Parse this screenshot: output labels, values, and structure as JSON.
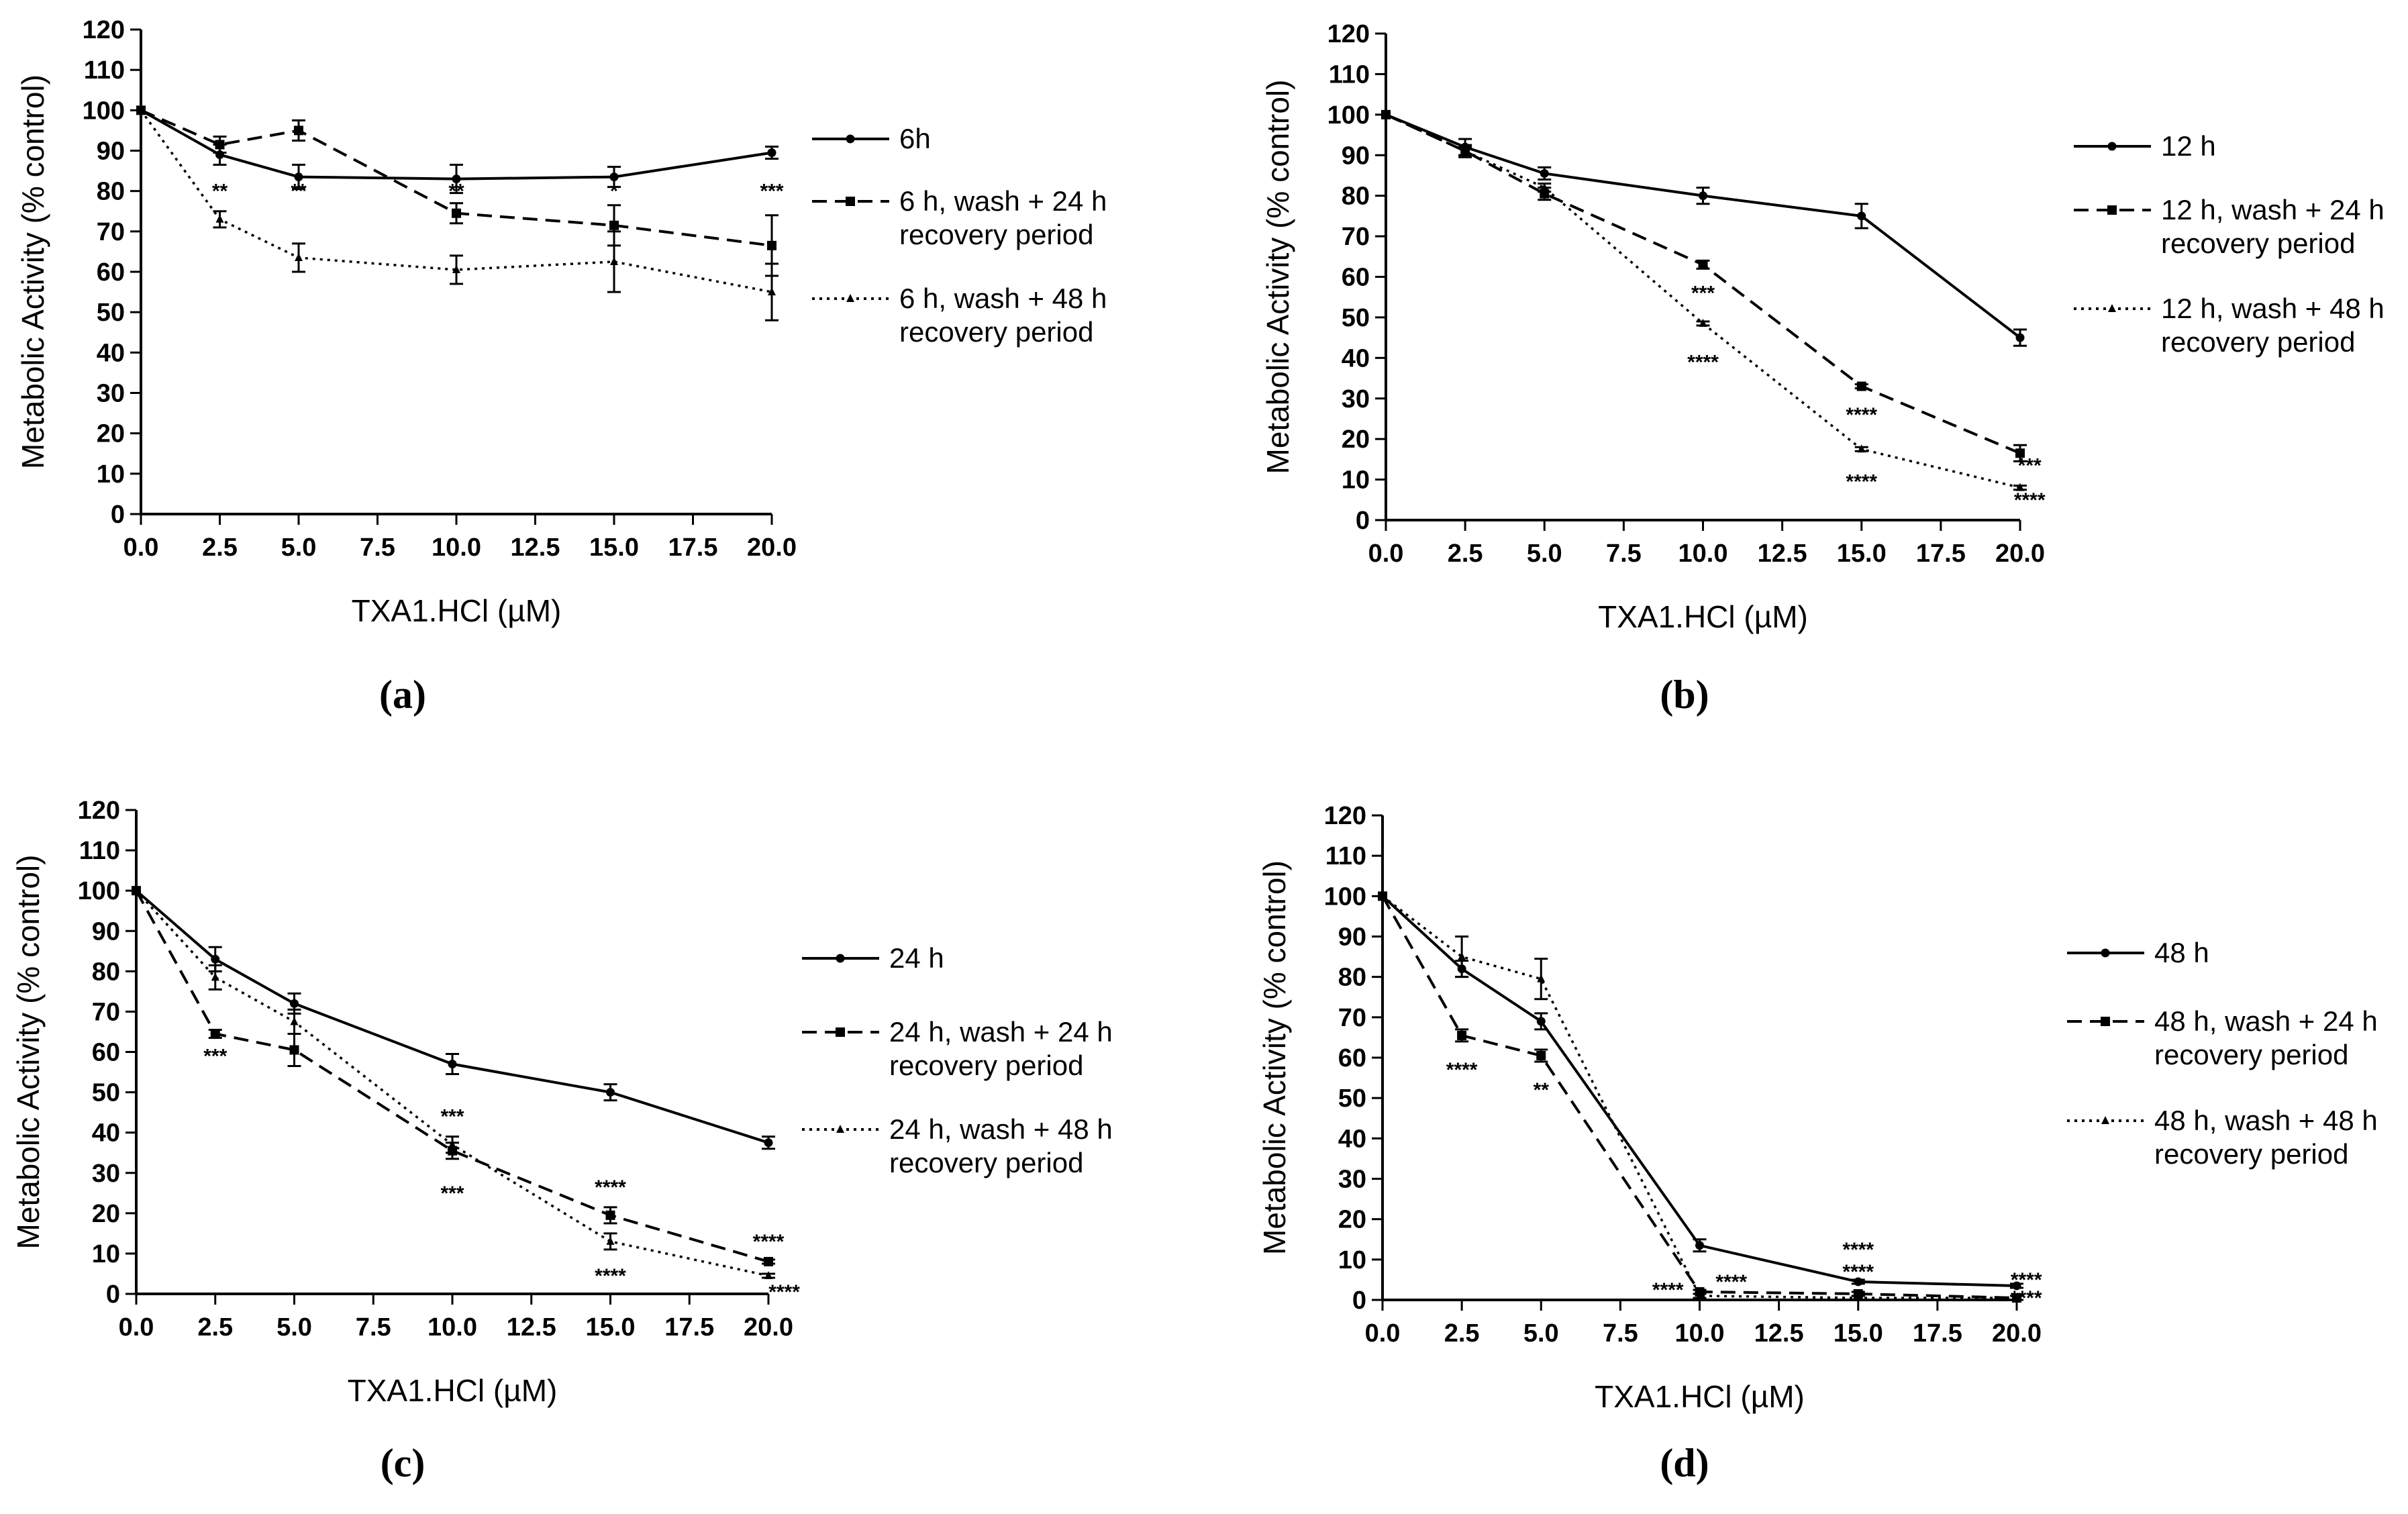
{
  "chart_data": [
    {
      "type": "line",
      "panel_label": "(a)",
      "xlabel": "TXA1.HCl (µM)",
      "ylabel": "Metabolic Activity (% control)",
      "xlim": [
        0,
        20
      ],
      "ylim": [
        0,
        120
      ],
      "x_ticks": [
        "0.0",
        "2.5",
        "5.0",
        "7.5",
        "10.0",
        "12.5",
        "15.0",
        "17.5",
        "20.0"
      ],
      "y_ticks": [
        "0",
        "10",
        "20",
        "30",
        "40",
        "50",
        "60",
        "70",
        "80",
        "90",
        "100",
        "110",
        "120"
      ],
      "legend_position": "right",
      "x": [
        0,
        2.5,
        5,
        10,
        15,
        20
      ],
      "series": [
        {
          "name": "6h",
          "legend_lines": [
            "6h"
          ],
          "style": "solid",
          "marker": "circle",
          "values": [
            100,
            89,
            83.5,
            83,
            83.5,
            89.5
          ],
          "errors": [
            0,
            2.5,
            3,
            3.5,
            2.5,
            1.5
          ]
        },
        {
          "name": "6 h, wash + 24 h recovery period",
          "legend_lines": [
            "6 h, wash + 24 h",
            "recovery period"
          ],
          "style": "dashed",
          "marker": "square",
          "values": [
            100,
            91.5,
            95,
            74.5,
            71.5,
            66.5
          ],
          "errors": [
            0,
            2,
            2.5,
            2.5,
            5,
            7.5
          ]
        },
        {
          "name": "6 h, wash + 48 h recovery period",
          "legend_lines": [
            "6 h, wash + 48 h",
            "recovery period"
          ],
          "style": "dotted",
          "marker": "triangle",
          "values": [
            100,
            73,
            63.5,
            60.5,
            62.5,
            55
          ],
          "errors": [
            0,
            2,
            3.5,
            3.5,
            7.5,
            7
          ]
        }
      ],
      "annotations": [
        {
          "text": "**",
          "x": 2.5,
          "y": 80,
          "dy": 0
        },
        {
          "text": "**",
          "x": 5,
          "y": 80,
          "dy": 0
        },
        {
          "text": "**",
          "x": 10,
          "y": 80,
          "dy": 0
        },
        {
          "text": "*",
          "x": 15,
          "y": 80,
          "dy": 0
        },
        {
          "text": "***",
          "x": 20,
          "y": 80,
          "dy": 0
        }
      ]
    },
    {
      "type": "line",
      "panel_label": "(b)",
      "xlabel": "TXA1.HCl (µM)",
      "ylabel": "Metabolic Activity (% control)",
      "xlim": [
        0,
        20
      ],
      "ylim": [
        0,
        120
      ],
      "x_ticks": [
        "0.0",
        "2.5",
        "5.0",
        "7.5",
        "10.0",
        "12.5",
        "15.0",
        "17.5",
        "20.0"
      ],
      "y_ticks": [
        "0",
        "10",
        "20",
        "30",
        "40",
        "50",
        "60",
        "70",
        "80",
        "90",
        "100",
        "110",
        "120"
      ],
      "legend_position": "right",
      "x": [
        0,
        2.5,
        5,
        10,
        15,
        20
      ],
      "series": [
        {
          "name": "12 h",
          "legend_lines": [
            "12 h"
          ],
          "style": "solid",
          "marker": "circle",
          "values": [
            100,
            92,
            85.5,
            80,
            75,
            45
          ],
          "errors": [
            0,
            2,
            1.5,
            2,
            3,
            2
          ]
        },
        {
          "name": "12 h, wash + 24 h recovery period",
          "legend_lines": [
            "12 h, wash + 24 h",
            "recovery period"
          ],
          "style": "dashed",
          "marker": "square",
          "values": [
            100,
            91,
            80.5,
            63,
            33,
            16.5
          ],
          "errors": [
            0,
            1.5,
            1.5,
            1,
            0.5,
            2
          ]
        },
        {
          "name": "12 h, wash + 48 h recovery period",
          "legend_lines": [
            "12 h, wash + 48 h",
            "recovery period"
          ],
          "style": "dotted",
          "marker": "triangle",
          "values": [
            100,
            91,
            82,
            48.5,
            17.5,
            8
          ],
          "errors": [
            0,
            1,
            1,
            0.5,
            0.5,
            0.5
          ]
        }
      ],
      "annotations": [
        {
          "text": "***",
          "x": 10,
          "y": 56,
          "dy": 0
        },
        {
          "text": "****",
          "x": 10,
          "y": 39,
          "dy": 0
        },
        {
          "text": "****",
          "x": 15,
          "y": 26,
          "dy": 0
        },
        {
          "text": "****",
          "x": 15,
          "y": 9.5,
          "dy": 0
        },
        {
          "text": "***",
          "x": 20.3,
          "y": 13.5,
          "dy": 0
        },
        {
          "text": "****",
          "x": 20.3,
          "y": 5,
          "dy": 0
        }
      ]
    },
    {
      "type": "line",
      "panel_label": "(c)",
      "xlabel": "TXA1.HCl (µM)",
      "ylabel": "Metabolic Activity (% control)",
      "xlim": [
        0,
        20
      ],
      "ylim": [
        0,
        120
      ],
      "x_ticks": [
        "0.0",
        "2.5",
        "5.0",
        "7.5",
        "10.0",
        "12.5",
        "15.0",
        "17.5",
        "20.0"
      ],
      "y_ticks": [
        "0",
        "10",
        "20",
        "30",
        "40",
        "50",
        "60",
        "70",
        "80",
        "90",
        "100",
        "110",
        "120"
      ],
      "legend_position": "right",
      "x": [
        0,
        2.5,
        5,
        10,
        15,
        20
      ],
      "series": [
        {
          "name": "24 h",
          "legend_lines": [
            "24 h"
          ],
          "style": "solid",
          "marker": "circle",
          "values": [
            100,
            83,
            72,
            57,
            50,
            37.5
          ],
          "errors": [
            0,
            3,
            2.5,
            2.5,
            2,
            1.5
          ]
        },
        {
          "name": "24 h, wash + 24 h recovery period",
          "legend_lines": [
            "24 h, wash + 24 h",
            "recovery period"
          ],
          "style": "dashed",
          "marker": "square",
          "values": [
            100,
            64.5,
            60.5,
            35.5,
            19.5,
            8
          ],
          "errors": [
            0,
            1,
            4,
            2,
            2,
            0.5
          ]
        },
        {
          "name": "24 h, wash + 48 h recovery period",
          "legend_lines": [
            "24 h, wash + 48 h",
            "recovery period"
          ],
          "style": "dotted",
          "marker": "triangle",
          "values": [
            100,
            78.5,
            67.5,
            37,
            13,
            4.5
          ],
          "errors": [
            0,
            3,
            3,
            2,
            2,
            0.5
          ]
        }
      ],
      "annotations": [
        {
          "text": "***",
          "x": 2.5,
          "y": 59,
          "dy": 0
        },
        {
          "text": "***",
          "x": 10,
          "y": 44,
          "dy": 0
        },
        {
          "text": "***",
          "x": 10,
          "y": 25,
          "dy": 0
        },
        {
          "text": "****",
          "x": 15,
          "y": 26.5,
          "dy": 0
        },
        {
          "text": "****",
          "x": 15,
          "y": 4.5,
          "dy": 0
        },
        {
          "text": "****",
          "x": 20,
          "y": 13,
          "dy": 0
        },
        {
          "text": "****",
          "x": 20.5,
          "y": 0.5,
          "dy": 0
        }
      ]
    },
    {
      "type": "line",
      "panel_label": "(d)",
      "xlabel": "TXA1.HCl (µM)",
      "ylabel": "Metabolic Activity (% control)",
      "xlim": [
        0,
        20
      ],
      "ylim": [
        0,
        120
      ],
      "x_ticks": [
        "0.0",
        "2.5",
        "5.0",
        "7.5",
        "10.0",
        "12.5",
        "15.0",
        "17.5",
        "20.0"
      ],
      "y_ticks": [
        "0",
        "10",
        "20",
        "30",
        "40",
        "50",
        "60",
        "70",
        "80",
        "90",
        "100",
        "110",
        "120"
      ],
      "legend_position": "right",
      "x": [
        0,
        2.5,
        5,
        10,
        15,
        20
      ],
      "series": [
        {
          "name": "48 h",
          "legend_lines": [
            "48 h"
          ],
          "style": "solid",
          "marker": "circle",
          "values": [
            100,
            82,
            69,
            13.5,
            4.5,
            3.5
          ],
          "errors": [
            0,
            2,
            2,
            1.5,
            0.5,
            0.5
          ]
        },
        {
          "name": "48 h, wash + 24 h recovery period",
          "legend_lines": [
            "48 h, wash + 24 h",
            "recovery period"
          ],
          "style": "dashed",
          "marker": "square",
          "values": [
            100,
            65.5,
            60.5,
            2,
            1.5,
            0.5
          ],
          "errors": [
            0,
            1.5,
            1.5,
            0.5,
            0.5,
            0.5
          ]
        },
        {
          "name": "48 h, wash + 48 h recovery period",
          "legend_lines": [
            "48 h, wash + 48 h",
            "recovery period"
          ],
          "style": "dotted",
          "marker": "triangle",
          "values": [
            100,
            85,
            79.5,
            1,
            0.5,
            0.5
          ],
          "errors": [
            0,
            5,
            5,
            0.5,
            0.5,
            0.5
          ]
        }
      ],
      "annotations": [
        {
          "text": "****",
          "x": 2.5,
          "y": 57,
          "dy": 0
        },
        {
          "text": "**",
          "x": 5,
          "y": 52,
          "dy": 0
        },
        {
          "text": "****",
          "x": 9,
          "y": 2.5,
          "dy": 0
        },
        {
          "text": "****",
          "x": 11,
          "y": 4.5,
          "dy": 0
        },
        {
          "text": "****",
          "x": 15,
          "y": 12.5,
          "dy": 0
        },
        {
          "text": "****",
          "x": 15,
          "y": 7,
          "dy": 0
        },
        {
          "text": "****",
          "x": 20.3,
          "y": 5,
          "dy": 0
        },
        {
          "text": "****",
          "x": 20.3,
          "y": 0.5,
          "dy": 0
        }
      ]
    }
  ]
}
